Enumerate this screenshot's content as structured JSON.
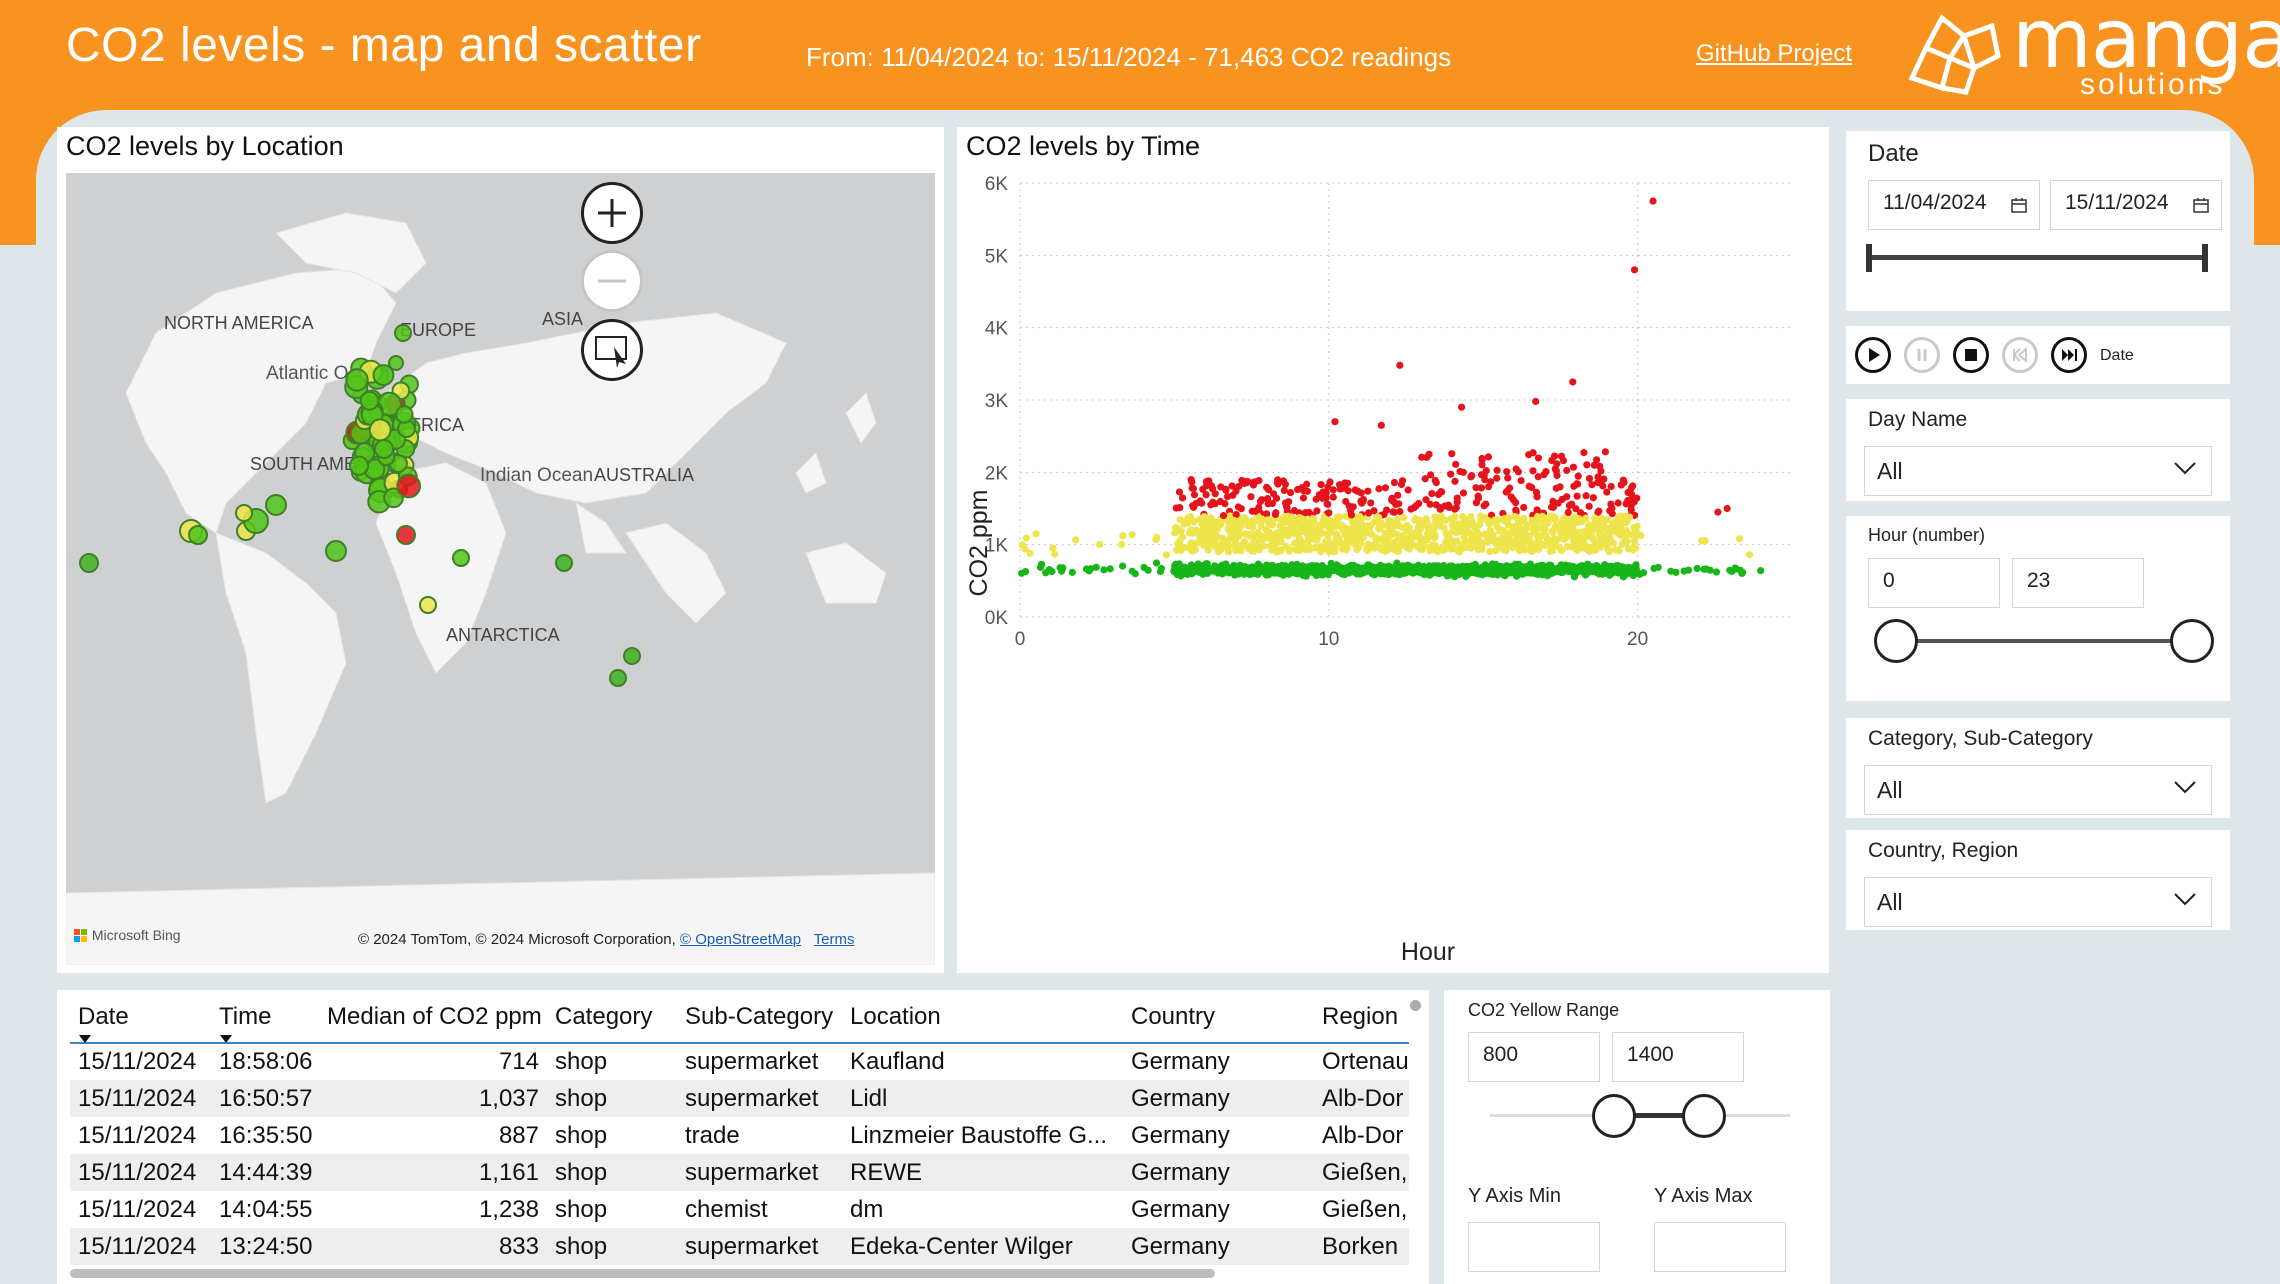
{
  "header": {
    "title": "CO2 levels - map and scatter",
    "range_text": "From: 11/04/2024 to: 15/11/2024 - 71,463 CO2 readings",
    "github_link": "GitHub Project",
    "logo_main": "manga",
    "logo_sub": "solutions"
  },
  "map_panel": {
    "title": "CO2 levels by Location",
    "labels": {
      "north_america": "NORTH AMERICA",
      "europe": "EUROPE",
      "asia": "ASIA",
      "africa": "AFRICA",
      "south_america": "SOUTH AMERICA",
      "australia": "AUSTRALIA",
      "antarctica": "ANTARCTICA",
      "atlantic": "Atlantic Ocean",
      "indian": "Indian Ocean"
    },
    "attribution": "© 2024 TomTom, © 2024 Microsoft Corporation, ",
    "osm_link": "© OpenStreetMap",
    "terms_link": "Terms",
    "bing_logo": "Microsoft Bing",
    "icons": {
      "zoom_in": "plus-icon",
      "zoom_out": "minus-icon",
      "select": "select-icon"
    }
  },
  "chart_panel": {
    "title": "CO2 levels by Time"
  },
  "chart_data": {
    "type": "scatter",
    "title": "CO2 levels by Time",
    "xlabel": "Hour",
    "ylabel": "CO2 ppm",
    "xlim": [
      0,
      25
    ],
    "ylim": [
      0,
      6000
    ],
    "x_ticks": [
      "0",
      "10",
      "20"
    ],
    "y_ticks": [
      "0K",
      "1K",
      "2K",
      "3K",
      "4K",
      "5K",
      "6K"
    ],
    "grid": "dotted",
    "colors": {
      "green": "#16b619",
      "yellow": "#ede54b",
      "red": "#e5141c"
    },
    "color_thresholds": {
      "yellow_from": 800,
      "red_from": 1400
    },
    "outliers": [
      {
        "x": 20.5,
        "y": 5750
      },
      {
        "x": 19.9,
        "y": 4800
      },
      {
        "x": 12.3,
        "y": 3480
      },
      {
        "x": 17.9,
        "y": 3250
      },
      {
        "x": 16.7,
        "y": 2980
      },
      {
        "x": 14.3,
        "y": 2900
      },
      {
        "x": 10.2,
        "y": 2700
      },
      {
        "x": 11.7,
        "y": 2650
      },
      {
        "x": 22.9,
        "y": 1500
      },
      {
        "x": 22.6,
        "y": 1450
      }
    ]
  },
  "slicers": {
    "date": {
      "label": "Date",
      "from": "11/04/2024",
      "to": "15/11/2024"
    },
    "play": {
      "label": "Date"
    },
    "day_name": {
      "label": "Day Name",
      "value": "All"
    },
    "hour": {
      "label": "Hour (number)",
      "min": "0",
      "max": "23"
    },
    "category": {
      "label": "Category, Sub-Category",
      "value": "All"
    },
    "country": {
      "label": "Country, Region",
      "value": "All"
    },
    "yellow_range": {
      "label": "CO2 Yellow Range",
      "min": "800",
      "max": "1400"
    },
    "y_axis_min": {
      "label": "Y Axis Min",
      "value": ""
    },
    "y_axis_max": {
      "label": "Y Axis Max",
      "value": ""
    }
  },
  "table": {
    "columns": [
      "Date",
      "Time",
      "Median of CO2 ppm",
      "Category",
      "Sub-Category",
      "Location",
      "Country",
      "Region"
    ],
    "rows": [
      [
        "15/11/2024",
        "18:58:06",
        "714",
        "shop",
        "supermarket",
        "Kaufland",
        "Germany",
        "Ortenau"
      ],
      [
        "15/11/2024",
        "16:50:57",
        "1,037",
        "shop",
        "supermarket",
        "Lidl",
        "Germany",
        "Alb-Dor"
      ],
      [
        "15/11/2024",
        "16:35:50",
        "887",
        "shop",
        "trade",
        "Linzmeier Baustoffe G...",
        "Germany",
        "Alb-Dor"
      ],
      [
        "15/11/2024",
        "14:44:39",
        "1,161",
        "shop",
        "supermarket",
        "REWE",
        "Germany",
        "Gießen,"
      ],
      [
        "15/11/2024",
        "14:04:55",
        "1,238",
        "shop",
        "chemist",
        "dm",
        "Germany",
        "Gießen,"
      ],
      [
        "15/11/2024",
        "13:24:50",
        "833",
        "shop",
        "supermarket",
        "Edeka-Center Wilger",
        "Germany",
        "Borken"
      ]
    ]
  }
}
